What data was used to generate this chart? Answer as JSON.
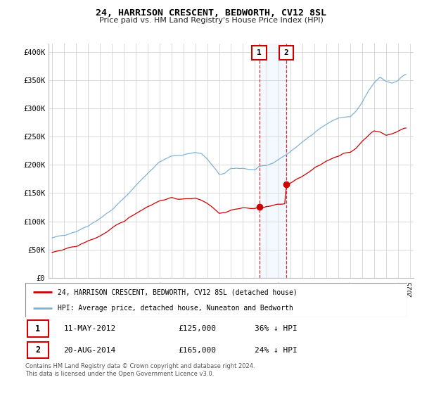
{
  "title": "24, HARRISON CRESCENT, BEDWORTH, CV12 8SL",
  "subtitle": "Price paid vs. HM Land Registry's House Price Index (HPI)",
  "ylabel_ticks": [
    "£0",
    "£50K",
    "£100K",
    "£150K",
    "£200K",
    "£250K",
    "£300K",
    "£350K",
    "£400K"
  ],
  "ytick_vals": [
    0,
    50000,
    100000,
    150000,
    200000,
    250000,
    300000,
    350000,
    400000
  ],
  "ylim": [
    0,
    415000
  ],
  "hpi_color": "#7fb3d3",
  "price_color": "#cc0000",
  "grid_color": "#cccccc",
  "legend_label_red": "24, HARRISON CRESCENT, BEDWORTH, CV12 8SL (detached house)",
  "legend_label_blue": "HPI: Average price, detached house, Nuneaton and Bedworth",
  "transaction1_label": "1",
  "transaction1_date": "11-MAY-2012",
  "transaction1_price": "£125,000",
  "transaction1_hpi": "36% ↓ HPI",
  "transaction1_year": 2012.36,
  "transaction2_label": "2",
  "transaction2_date": "20-AUG-2014",
  "transaction2_price": "£165,000",
  "transaction2_hpi": "24% ↓ HPI",
  "transaction2_year": 2014.64,
  "transaction1_price_val": 125000,
  "transaction2_price_val": 165000,
  "footer": "Contains HM Land Registry data © Crown copyright and database right 2024.\nThis data is licensed under the Open Government Licence v3.0."
}
